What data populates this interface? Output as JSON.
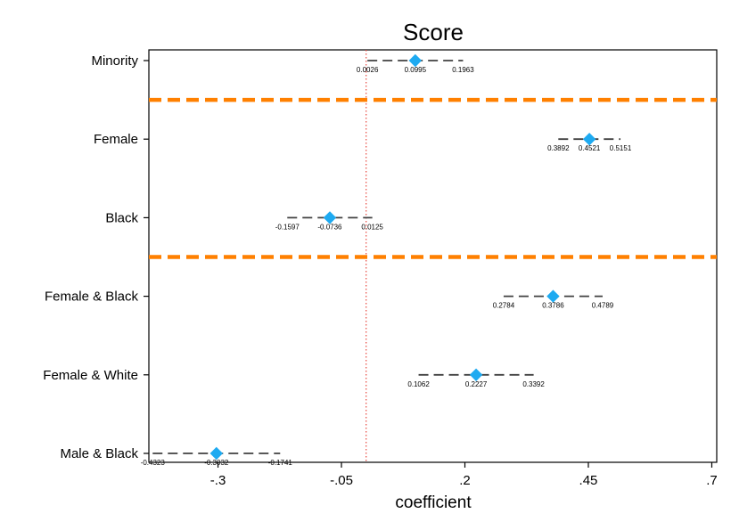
{
  "chart_data": {
    "type": "scatter",
    "title": "Score",
    "xlabel": "coefficient",
    "ylabel": "",
    "xlim": [
      -0.44,
      0.71
    ],
    "xticks": [
      {
        "value": -0.3,
        "label": "-.3"
      },
      {
        "value": -0.05,
        "label": "-.05"
      },
      {
        "value": 0.2,
        "label": ".2"
      },
      {
        "value": 0.45,
        "label": ".45"
      },
      {
        "value": 0.7,
        "label": ".7"
      }
    ],
    "reference_line": {
      "x": 0.0,
      "style": "dotted",
      "color": "#e8483f"
    },
    "separators": [
      {
        "after_row": 0,
        "color": "#ff8000"
      },
      {
        "after_row": 2,
        "color": "#ff8000"
      }
    ],
    "marker_color": "#1eaaf1",
    "ci_color": "#404040",
    "rows": [
      {
        "label": "Minority",
        "estimate": 0.0995,
        "lower": 0.0026,
        "upper": 0.1963,
        "estimate_label": "0.0995",
        "lower_label": "0.0026",
        "upper_label": "0.1963"
      },
      {
        "label": "Female",
        "estimate": 0.4521,
        "lower": 0.3892,
        "upper": 0.5151,
        "estimate_label": "0.4521",
        "lower_label": "0.3892",
        "upper_label": "0.5151"
      },
      {
        "label": "Black",
        "estimate": -0.0736,
        "lower": -0.1597,
        "upper": 0.0125,
        "estimate_label": "-0.0736",
        "lower_label": "-0.1597",
        "upper_label": "0.0125"
      },
      {
        "label": "Female & Black",
        "estimate": 0.3786,
        "lower": 0.2784,
        "upper": 0.4789,
        "estimate_label": "0.3786",
        "lower_label": "0.2784",
        "upper_label": "0.4789"
      },
      {
        "label": "Female & White",
        "estimate": 0.2227,
        "lower": 0.1062,
        "upper": 0.3392,
        "estimate_label": "0.2227",
        "lower_label": "0.1062",
        "upper_label": "0.3392"
      },
      {
        "label": "Male & Black",
        "estimate": -0.3032,
        "lower": -0.4323,
        "upper": -0.1741,
        "estimate_label": "-0.3032",
        "lower_label": "-0.4323",
        "upper_label": "-0.1741"
      }
    ]
  }
}
